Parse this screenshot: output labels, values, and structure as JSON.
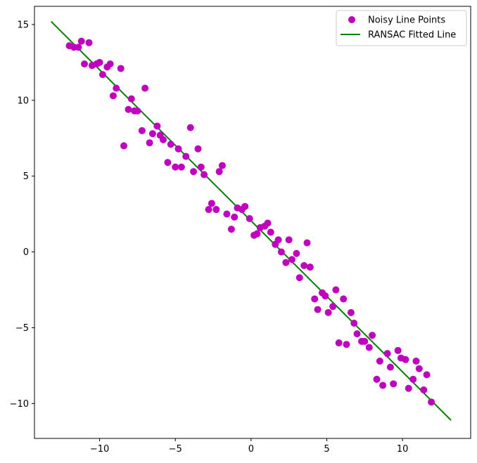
{
  "chart_data": {
    "type": "scatter",
    "title": "",
    "xlabel": "",
    "ylabel": "",
    "xlim": [
      -14.3,
      14.5
    ],
    "ylim": [
      -12.3,
      16.2
    ],
    "xticks": [
      -10,
      -5,
      0,
      5,
      10
    ],
    "yticks": [
      -10,
      -5,
      0,
      5,
      10,
      15
    ],
    "xtick_labels": [
      "−10",
      "−5",
      "0",
      "5",
      "10"
    ],
    "ytick_labels": [
      "−10",
      "−5",
      "0",
      "5",
      "10",
      "15"
    ],
    "grid": false,
    "legend": {
      "location": "top-right",
      "entries": [
        "Noisy Line Points",
        "RANSAC Fitted Line"
      ]
    },
    "series": [
      {
        "name": "Noisy Line Points",
        "kind": "scatter",
        "color": "#bf00bf",
        "points": [
          [
            -12.0,
            13.6
          ],
          [
            -11.7,
            13.5
          ],
          [
            -11.4,
            13.5
          ],
          [
            -11.2,
            13.9
          ],
          [
            -11.0,
            12.4
          ],
          [
            -10.7,
            13.8
          ],
          [
            -10.5,
            12.3
          ],
          [
            -10.2,
            12.4
          ],
          [
            -10.0,
            12.5
          ],
          [
            -9.8,
            11.7
          ],
          [
            -9.5,
            12.2
          ],
          [
            -9.3,
            12.4
          ],
          [
            -9.1,
            10.3
          ],
          [
            -8.9,
            10.8
          ],
          [
            -8.6,
            12.1
          ],
          [
            -8.4,
            7.0
          ],
          [
            -8.1,
            9.4
          ],
          [
            -7.9,
            10.1
          ],
          [
            -7.7,
            9.3
          ],
          [
            -7.5,
            9.3
          ],
          [
            -7.2,
            8.0
          ],
          [
            -7.0,
            10.8
          ],
          [
            -6.7,
            7.2
          ],
          [
            -6.5,
            7.8
          ],
          [
            -6.2,
            8.3
          ],
          [
            -6.0,
            7.7
          ],
          [
            -5.8,
            7.4
          ],
          [
            -5.5,
            5.9
          ],
          [
            -5.3,
            7.1
          ],
          [
            -5.0,
            5.6
          ],
          [
            -4.8,
            6.8
          ],
          [
            -4.6,
            5.6
          ],
          [
            -4.3,
            6.3
          ],
          [
            -4.0,
            8.2
          ],
          [
            -3.8,
            5.3
          ],
          [
            -3.5,
            6.8
          ],
          [
            -3.3,
            5.6
          ],
          [
            -3.1,
            5.1
          ],
          [
            -2.8,
            2.8
          ],
          [
            -2.6,
            3.2
          ],
          [
            -2.3,
            2.8
          ],
          [
            -2.1,
            5.3
          ],
          [
            -1.9,
            5.7
          ],
          [
            -1.6,
            2.5
          ],
          [
            -1.3,
            1.5
          ],
          [
            -1.1,
            2.3
          ],
          [
            -0.9,
            2.9
          ],
          [
            -0.6,
            2.8
          ],
          [
            -0.4,
            3.0
          ],
          [
            -0.1,
            2.2
          ],
          [
            0.2,
            1.1
          ],
          [
            0.4,
            1.2
          ],
          [
            0.6,
            1.6
          ],
          [
            0.9,
            1.7
          ],
          [
            1.1,
            1.9
          ],
          [
            1.3,
            1.3
          ],
          [
            1.6,
            0.5
          ],
          [
            1.8,
            0.8
          ],
          [
            2.0,
            0.0
          ],
          [
            2.3,
            -0.7
          ],
          [
            2.5,
            0.8
          ],
          [
            2.7,
            -0.5
          ],
          [
            3.0,
            -0.1
          ],
          [
            3.2,
            -1.7
          ],
          [
            3.5,
            -0.9
          ],
          [
            3.7,
            0.6
          ],
          [
            3.9,
            -1.0
          ],
          [
            4.2,
            -3.1
          ],
          [
            4.4,
            -3.8
          ],
          [
            4.7,
            -2.7
          ],
          [
            4.9,
            -2.9
          ],
          [
            5.1,
            -4.0
          ],
          [
            5.4,
            -3.6
          ],
          [
            5.6,
            -2.5
          ],
          [
            5.8,
            -6.0
          ],
          [
            6.1,
            -3.1
          ],
          [
            6.3,
            -6.1
          ],
          [
            6.6,
            -4.0
          ],
          [
            6.8,
            -4.7
          ],
          [
            7.0,
            -5.4
          ],
          [
            7.3,
            -5.9
          ],
          [
            7.5,
            -5.9
          ],
          [
            7.8,
            -6.3
          ],
          [
            8.0,
            -5.5
          ],
          [
            8.3,
            -8.4
          ],
          [
            8.5,
            -7.2
          ],
          [
            8.7,
            -8.8
          ],
          [
            9.0,
            -6.7
          ],
          [
            9.2,
            -7.6
          ],
          [
            9.4,
            -8.7
          ],
          [
            9.7,
            -6.5
          ],
          [
            9.9,
            -7.0
          ],
          [
            10.2,
            -7.1
          ],
          [
            10.4,
            -9.0
          ],
          [
            10.7,
            -8.4
          ],
          [
            10.9,
            -7.2
          ],
          [
            11.1,
            -7.7
          ],
          [
            11.4,
            -9.1
          ],
          [
            11.6,
            -8.1
          ],
          [
            11.9,
            -9.9
          ]
        ]
      },
      {
        "name": "RANSAC Fitted Line",
        "kind": "line",
        "color": "#008000",
        "x": [
          -13.2,
          13.2
        ],
        "y": [
          15.2,
          -11.1
        ]
      }
    ]
  }
}
